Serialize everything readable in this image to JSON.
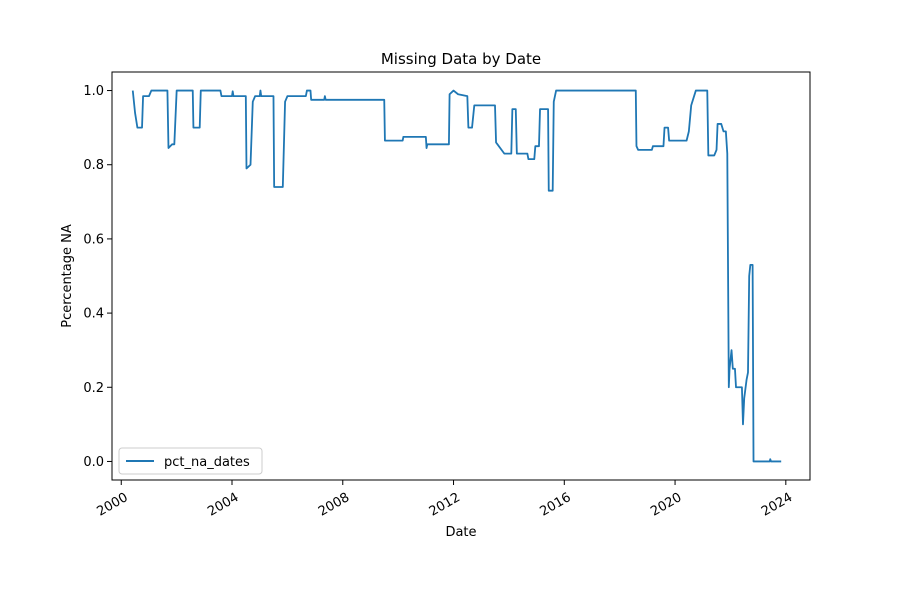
{
  "chart_data": {
    "type": "line",
    "title": "Missing Data by Date",
    "xlabel": "Date",
    "ylabel": "Pcercentage NA",
    "xlim": [
      "1999-09-01",
      "2024-11-15"
    ],
    "ylim": [
      -0.05,
      1.05
    ],
    "x_ticks": [
      "2000",
      "2004",
      "2008",
      "2012",
      "2016",
      "2020",
      "2024"
    ],
    "y_ticks": [
      "0.0",
      "0.2",
      "0.4",
      "0.6",
      "0.8",
      "1.0"
    ],
    "grid": false,
    "legend": {
      "position": "lower-left",
      "entries": [
        "pct_na_dates"
      ]
    },
    "colors": {
      "series": "#1f77b4"
    },
    "series": [
      {
        "name": "pct_na_dates",
        "points": [
          [
            "2000-06-01",
            1.0
          ],
          [
            "2000-07-01",
            0.94
          ],
          [
            "2000-08-01",
            0.9
          ],
          [
            "2000-10-01",
            0.9
          ],
          [
            "2000-10-15",
            0.985
          ],
          [
            "2001-01-01",
            0.985
          ],
          [
            "2001-02-01",
            1.0
          ],
          [
            "2001-09-01",
            1.0
          ],
          [
            "2001-09-15",
            0.845
          ],
          [
            "2001-11-01",
            0.855
          ],
          [
            "2001-12-01",
            0.855
          ],
          [
            "2002-01-01",
            1.0
          ],
          [
            "2002-08-01",
            1.0
          ],
          [
            "2002-08-10",
            0.9
          ],
          [
            "2002-11-01",
            0.9
          ],
          [
            "2002-11-15",
            1.0
          ],
          [
            "2003-08-01",
            1.0
          ],
          [
            "2003-08-15",
            0.985
          ],
          [
            "2003-12-01",
            0.985
          ],
          [
            "2004-01-01",
            0.985
          ],
          [
            "2004-01-10",
            0.998
          ],
          [
            "2004-01-20",
            0.985
          ],
          [
            "2004-06-01",
            0.985
          ],
          [
            "2004-07-01",
            0.985
          ],
          [
            "2004-07-10",
            0.79
          ],
          [
            "2004-09-01",
            0.8
          ],
          [
            "2004-10-01",
            0.97
          ],
          [
            "2004-11-01",
            0.985
          ],
          [
            "2005-01-01",
            0.985
          ],
          [
            "2005-01-10",
            1.0
          ],
          [
            "2005-01-20",
            0.985
          ],
          [
            "2005-07-01",
            0.985
          ],
          [
            "2005-07-10",
            0.74
          ],
          [
            "2005-11-01",
            0.74
          ],
          [
            "2005-12-01",
            0.97
          ],
          [
            "2006-01-01",
            0.985
          ],
          [
            "2006-09-01",
            0.985
          ],
          [
            "2006-09-15",
            1.0
          ],
          [
            "2006-11-01",
            1.0
          ],
          [
            "2006-11-10",
            0.975
          ],
          [
            "2007-05-01",
            0.975
          ],
          [
            "2007-05-10",
            0.985
          ],
          [
            "2007-05-20",
            0.975
          ],
          [
            "2009-07-01",
            0.975
          ],
          [
            "2009-07-10",
            0.865
          ],
          [
            "2010-03-01",
            0.865
          ],
          [
            "2010-03-10",
            0.875
          ],
          [
            "2011-01-01",
            0.875
          ],
          [
            "2011-01-10",
            0.845
          ],
          [
            "2011-01-20",
            0.855
          ],
          [
            "2011-11-01",
            0.855
          ],
          [
            "2011-11-10",
            0.99
          ],
          [
            "2012-01-01",
            1.0
          ],
          [
            "2012-03-01",
            0.99
          ],
          [
            "2012-07-01",
            0.985
          ],
          [
            "2012-07-15",
            0.9
          ],
          [
            "2012-09-01",
            0.9
          ],
          [
            "2012-10-01",
            0.96
          ],
          [
            "2013-07-01",
            0.96
          ],
          [
            "2013-07-15",
            0.86
          ],
          [
            "2013-11-01",
            0.83
          ],
          [
            "2014-02-01",
            0.83
          ],
          [
            "2014-02-15",
            0.95
          ],
          [
            "2014-04-01",
            0.95
          ],
          [
            "2014-04-15",
            0.83
          ],
          [
            "2014-09-01",
            0.83
          ],
          [
            "2014-09-15",
            0.815
          ],
          [
            "2014-12-01",
            0.815
          ],
          [
            "2014-12-15",
            0.85
          ],
          [
            "2015-02-01",
            0.85
          ],
          [
            "2015-02-15",
            0.95
          ],
          [
            "2015-06-01",
            0.95
          ],
          [
            "2015-06-10",
            0.73
          ],
          [
            "2015-08-01",
            0.73
          ],
          [
            "2015-08-15",
            0.97
          ],
          [
            "2015-09-15",
            1.0
          ],
          [
            "2018-08-01",
            1.0
          ],
          [
            "2018-08-10",
            0.85
          ],
          [
            "2018-09-01",
            0.84
          ],
          [
            "2019-03-01",
            0.84
          ],
          [
            "2019-03-15",
            0.85
          ],
          [
            "2019-08-01",
            0.85
          ],
          [
            "2019-08-15",
            0.9
          ],
          [
            "2019-10-01",
            0.9
          ],
          [
            "2019-10-15",
            0.865
          ],
          [
            "2020-06-01",
            0.865
          ],
          [
            "2020-07-01",
            0.89
          ],
          [
            "2020-08-01",
            0.96
          ],
          [
            "2020-10-01",
            1.0
          ],
          [
            "2021-03-01",
            1.0
          ],
          [
            "2021-03-15",
            0.825
          ],
          [
            "2021-06-01",
            0.825
          ],
          [
            "2021-07-01",
            0.84
          ],
          [
            "2021-07-15",
            0.91
          ],
          [
            "2021-09-01",
            0.91
          ],
          [
            "2021-10-01",
            0.89
          ],
          [
            "2021-11-01",
            0.89
          ],
          [
            "2021-11-20",
            0.83
          ],
          [
            "2021-12-10",
            0.2
          ],
          [
            "2021-12-20",
            0.25
          ],
          [
            "2022-01-15",
            0.3
          ],
          [
            "2022-02-01",
            0.25
          ],
          [
            "2022-03-01",
            0.25
          ],
          [
            "2022-03-15",
            0.2
          ],
          [
            "2022-06-01",
            0.2
          ],
          [
            "2022-06-15",
            0.1
          ],
          [
            "2022-07-01",
            0.17
          ],
          [
            "2022-08-01",
            0.22
          ],
          [
            "2022-08-20",
            0.24
          ],
          [
            "2022-09-05",
            0.5
          ],
          [
            "2022-09-20",
            0.53
          ],
          [
            "2022-10-20",
            0.53
          ],
          [
            "2022-11-01",
            0.0
          ],
          [
            "2023-06-01",
            0.0
          ],
          [
            "2023-06-10",
            0.006
          ],
          [
            "2023-06-20",
            0.0
          ],
          [
            "2023-11-01",
            0.0
          ]
        ]
      }
    ]
  }
}
